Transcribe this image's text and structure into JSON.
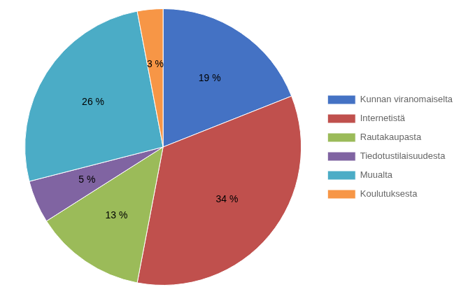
{
  "chart_data": {
    "type": "pie",
    "categories": [
      "Kunnan viranomaiselta",
      "Internetistä",
      "Rautakaupasta",
      "Tiedotustilaisuudesta",
      "Muualta",
      "Koulutuksesta"
    ],
    "values": [
      19,
      34,
      13,
      5,
      26,
      3
    ],
    "value_labels": [
      "19 %",
      "34 %",
      "13 %",
      "5 %",
      "26 %",
      "3 %"
    ],
    "colors": [
      "#4472C4",
      "#C0504D",
      "#9BBB59",
      "#8064A2",
      "#4BACC6",
      "#F79646"
    ],
    "data_labels": true,
    "legend": "right"
  }
}
